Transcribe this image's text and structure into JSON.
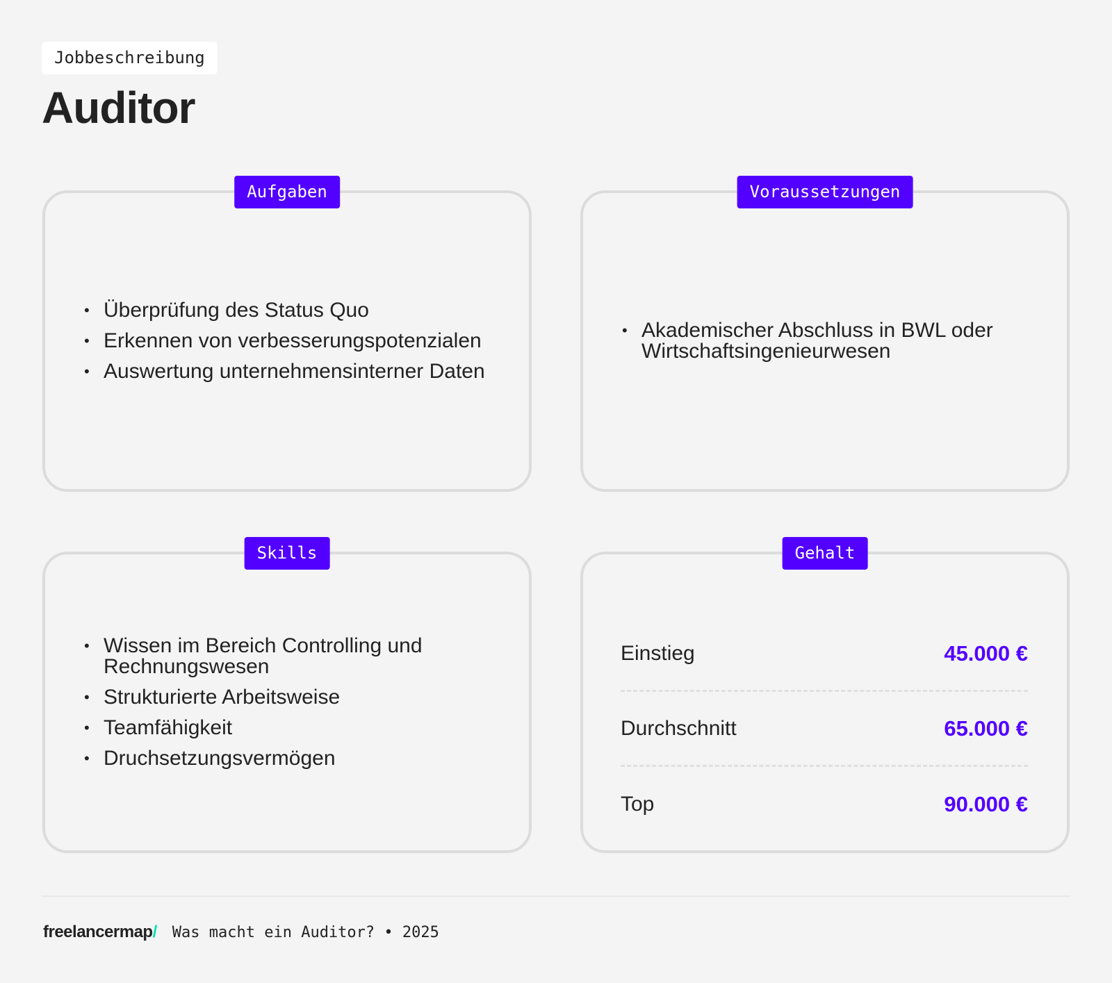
{
  "header": {
    "kicker": "Jobbeschreibung",
    "title": "Auditor"
  },
  "cards": {
    "tasks": {
      "label": "Aufgaben",
      "items": [
        "Überprüfung des Status Quo",
        "Erkennen von verbesserungspotenzialen",
        "Auswertung unternehmensinterner Daten"
      ]
    },
    "requirements": {
      "label": "Voraussetzungen",
      "items": [
        "Akademischer Abschluss in BWL oder Wirtschaftsingenieurwesen"
      ]
    },
    "skills": {
      "label": "Skills",
      "items": [
        "Wissen im Bereich Controlling und Rechnungswesen",
        "Strukturierte Arbeitsweise",
        "Teamfähigkeit",
        "Druchsetzungsvermögen"
      ]
    },
    "salary": {
      "label": "Gehalt",
      "rows": [
        {
          "label": "Einstieg",
          "value": "45.000 €"
        },
        {
          "label": "Durchschnitt",
          "value": "65.000 €"
        },
        {
          "label": "Top",
          "value": "90.000 €"
        }
      ]
    }
  },
  "footer": {
    "logo": "freelancermap",
    "logo_slash": "/",
    "text": "Was macht ein Auditor? • 2025"
  },
  "colors": {
    "accent": "#5200ff",
    "logo_slash": "#00e0b0"
  }
}
